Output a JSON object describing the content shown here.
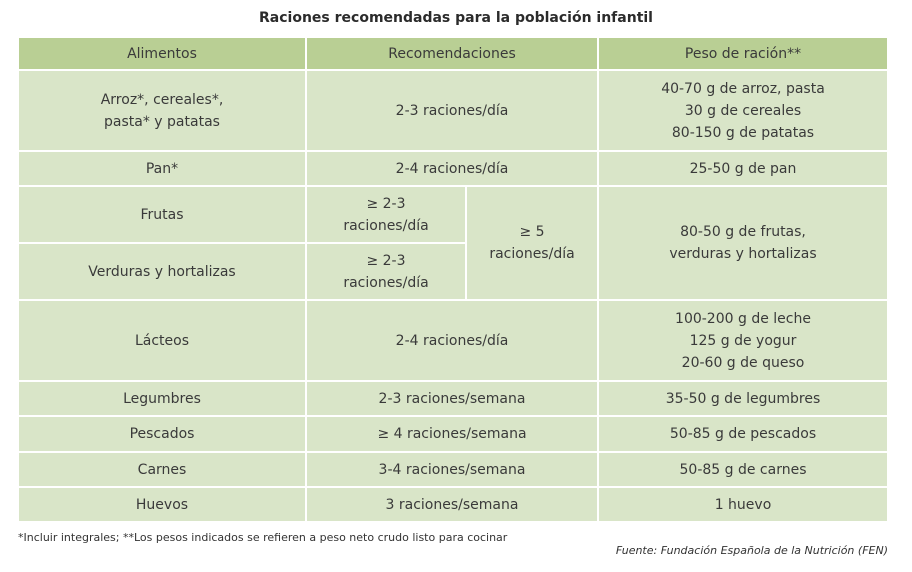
{
  "title": "Raciones recomendadas para la población infantil",
  "table": {
    "header": [
      "Alimentos",
      "Recomendaciones",
      "Peso de ración**"
    ],
    "rows": [
      {
        "food": [
          "Arroz*, cereales*,",
          "pasta* y patatas"
        ],
        "recommendation": [
          "2-3 raciones/día"
        ],
        "weight": [
          "40-70 g de arroz, pasta",
          "30 g de cereales",
          "80-150 g de patatas"
        ]
      },
      {
        "food": [
          "Pan*"
        ],
        "recommendation": [
          "2-4 raciones/día"
        ],
        "weight": [
          "25-50 g de pan"
        ]
      },
      {
        "food": [
          "Frutas"
        ],
        "recommendation": [
          "≥ 2-3",
          "raciones/día"
        ]
      },
      {
        "food": [
          "Verduras y hortalizas"
        ],
        "recommendation": [
          "≥ 2-3",
          "raciones/día"
        ]
      },
      {
        "food": [
          "Lácteos"
        ],
        "recommendation": [
          "2-4 raciones/día"
        ],
        "weight": [
          "100-200 g de leche",
          "125 g de yogur",
          "20-60 g de queso"
        ]
      },
      {
        "food": [
          "Legumbres"
        ],
        "recommendation": [
          "2-3 raciones/semana"
        ],
        "weight": [
          "35-50 g de legumbres"
        ]
      },
      {
        "food": [
          "Pescados"
        ],
        "recommendation": [
          "≥ 4 raciones/semana"
        ],
        "weight": [
          "50-85 g de pescados"
        ]
      },
      {
        "food": [
          "Carnes"
        ],
        "recommendation": [
          "3-4 raciones/semana"
        ],
        "weight": [
          "50-85 g de carnes"
        ]
      },
      {
        "food": [
          "Huevos"
        ],
        "recommendation": [
          "3 raciones/semana"
        ],
        "weight": [
          "1 huevo"
        ]
      }
    ],
    "combined": {
      "recommendation": [
        "≥ 5",
        "raciones/día"
      ],
      "weight": [
        "80-50 g de frutas,",
        "verduras y hortalizas"
      ]
    }
  },
  "footnote": "*Incluir integrales;  **Los pesos indicados se refieren a peso neto crudo listo para cocinar",
  "source": "Fuente: Fundación Española de la Nutrición (FEN)"
}
